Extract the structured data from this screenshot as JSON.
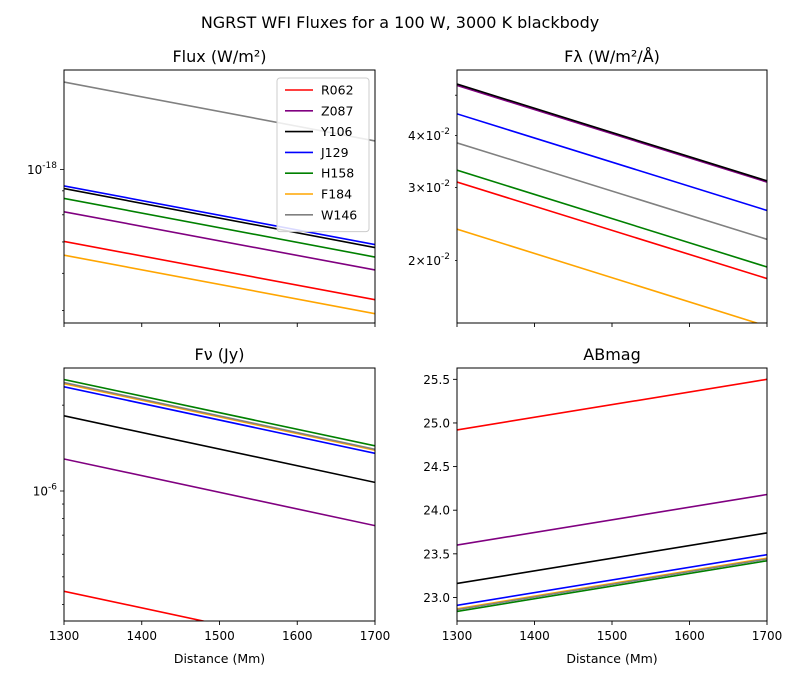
{
  "figure": {
    "suptitle": "NGRST WFI Fluxes for a 100 W, 3000 K blackbody"
  },
  "colors": {
    "R062": "#ff0000",
    "Z087": "#800080",
    "Y106": "#000000",
    "J129": "#0000ff",
    "H158": "#008000",
    "F184": "#ffa500",
    "W146": "#808080"
  },
  "chart_data": [
    {
      "type": "line",
      "title": "Flux (W/m²)",
      "xlabel": "",
      "ylabel": "",
      "x": [
        1300,
        1700
      ],
      "xlim": [
        1300,
        1700
      ],
      "xticks": [
        1300,
        1400,
        1500,
        1600,
        1700
      ],
      "xticklabels": [],
      "yscale": "log",
      "ylim": [
        4.7e-19,
        1.63e-18
      ],
      "yticks": [
        1e-18
      ],
      "yticklabels": [
        "10^{-18}"
      ],
      "legend": {
        "location": "upper right",
        "entries": [
          "R062",
          "Z087",
          "Y106",
          "J129",
          "H158",
          "F184",
          "W146"
        ]
      },
      "series": [
        {
          "name": "R062",
          "values": [
            7.02e-19,
            5.27e-19
          ]
        },
        {
          "name": "Z087",
          "values": [
            8.12e-19,
            6.1e-19
          ]
        },
        {
          "name": "Y106",
          "values": [
            9.1e-19,
            6.81e-19
          ]
        },
        {
          "name": "J129",
          "values": [
            9.22e-19,
            6.91e-19
          ]
        },
        {
          "name": "H158",
          "values": [
            8.67e-19,
            6.5e-19
          ]
        },
        {
          "name": "F184",
          "values": [
            6.56e-19,
            4.92e-19
          ]
        },
        {
          "name": "W146",
          "values": [
            1.536e-18,
            1.15e-18
          ]
        }
      ]
    },
    {
      "type": "line",
      "title": "Fλ (W/m²/Å)",
      "xlabel": "",
      "ylabel": "",
      "x": [
        1300,
        1700
      ],
      "xlim": [
        1300,
        1700
      ],
      "xticks": [
        1300,
        1400,
        1500,
        1600,
        1700
      ],
      "xticklabels": [],
      "yscale": "log",
      "ylim": [
        0.01415,
        0.0575
      ],
      "yticks": [
        0.02,
        0.03,
        0.04
      ],
      "yticklabels": [
        "2×10^{-2}",
        "3×10^{-2}",
        "4×10^{-2}"
      ],
      "series": [
        {
          "name": "R062",
          "values": [
            0.0309,
            0.0181
          ]
        },
        {
          "name": "Z087",
          "values": [
            0.0528,
            0.0309
          ]
        },
        {
          "name": "Y106",
          "values": [
            0.0532,
            0.0311
          ]
        },
        {
          "name": "J129",
          "values": [
            0.0451,
            0.0264
          ]
        },
        {
          "name": "H158",
          "values": [
            0.033,
            0.0193
          ]
        },
        {
          "name": "F184",
          "values": [
            0.0238,
            0.0139
          ]
        },
        {
          "name": "W146",
          "values": [
            0.0384,
            0.0225
          ]
        }
      ]
    },
    {
      "type": "line",
      "title": "Fν (Jy)",
      "xlabel": "Distance (Mm)",
      "ylabel": "",
      "x": [
        1300,
        1700
      ],
      "xlim": [
        1300,
        1700
      ],
      "xticks": [
        1300,
        1400,
        1500,
        1600,
        1700
      ],
      "xticklabels": [
        "1300",
        "1400",
        "1500",
        "1600",
        "1700"
      ],
      "yscale": "log",
      "ylim": [
        3.5e-07,
        2.7e-06
      ],
      "yticks": [
        1e-06
      ],
      "yticklabels": [
        "10^{-6}"
      ],
      "series": [
        {
          "name": "R062",
          "values": [
            4.45e-07,
            2.6e-07
          ]
        },
        {
          "name": "Z087",
          "values": [
            1.295e-06,
            7.56e-07
          ]
        },
        {
          "name": "Y106",
          "values": [
            1.835e-06,
            1.072e-06
          ]
        },
        {
          "name": "J129",
          "values": [
            2.32e-06,
            1.356e-06
          ]
        },
        {
          "name": "H158",
          "values": [
            2.46e-06,
            1.44e-06
          ]
        },
        {
          "name": "F184",
          "values": [
            2.38e-06,
            1.39e-06
          ]
        },
        {
          "name": "W146",
          "values": [
            2.4e-06,
            1.4e-06
          ]
        }
      ]
    },
    {
      "type": "line",
      "title": "ABmag",
      "xlabel": "Distance (Mm)",
      "ylabel": "",
      "x": [
        1300,
        1700
      ],
      "xlim": [
        1300,
        1700
      ],
      "xticks": [
        1300,
        1400,
        1500,
        1600,
        1700
      ],
      "xticklabels": [
        "1300",
        "1400",
        "1500",
        "1600",
        "1700"
      ],
      "yscale": "linear",
      "ylim": [
        22.73,
        25.63
      ],
      "yticks": [
        23.0,
        23.5,
        24.0,
        24.5,
        25.0,
        25.5
      ],
      "yticklabels": [
        "23.0",
        "23.5",
        "24.0",
        "24.5",
        "25.0",
        "25.5"
      ],
      "series": [
        {
          "name": "R062",
          "values": [
            24.92,
            25.5
          ]
        },
        {
          "name": "Z087",
          "values": [
            23.6,
            24.18
          ]
        },
        {
          "name": "Y106",
          "values": [
            23.16,
            23.74
          ]
        },
        {
          "name": "J129",
          "values": [
            22.91,
            23.49
          ]
        },
        {
          "name": "H158",
          "values": [
            22.84,
            23.42
          ]
        },
        {
          "name": "F184",
          "values": [
            22.87,
            23.45
          ]
        },
        {
          "name": "W146",
          "values": [
            22.86,
            23.44
          ]
        }
      ]
    }
  ]
}
